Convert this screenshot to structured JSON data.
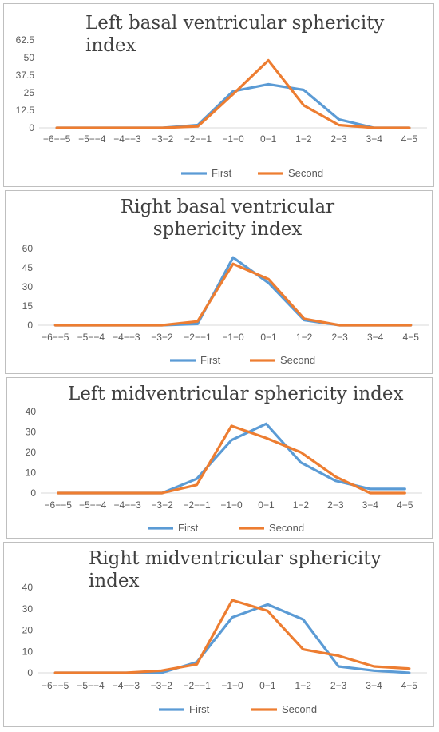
{
  "categories": [
    "−6−−5",
    "−5−−4",
    "−4−−3",
    "−3−2",
    "−2−−1",
    "−1−0",
    "0−1",
    "1−2",
    "2−3",
    "3−4",
    "4−5"
  ],
  "colors": {
    "first": "#5b9bd5",
    "second": "#ed7d31",
    "axis": "#d9d9d9",
    "text": "#595959"
  },
  "chart_data": [
    {
      "type": "line",
      "title": "Left basal ventricular sphericity index",
      "xlabel": "",
      "ylabel": "",
      "ylim": [
        0,
        62.5
      ],
      "yticks": [
        "0",
        "12.5",
        "25",
        "37.5",
        "50",
        "62.5"
      ],
      "legend": "bottom",
      "series": [
        {
          "name": "First",
          "values": [
            0,
            0,
            0,
            0,
            2,
            26,
            31,
            27,
            6,
            0,
            0
          ]
        },
        {
          "name": "Second",
          "values": [
            0,
            0,
            0,
            0,
            1,
            24,
            48,
            16,
            2,
            0,
            0
          ]
        }
      ]
    },
    {
      "type": "line",
      "title": "Right basal ventricular sphericity index",
      "xlabel": "",
      "ylabel": "",
      "ylim": [
        0,
        60
      ],
      "yticks": [
        "0",
        "15",
        "30",
        "45",
        "60"
      ],
      "legend": "bottom",
      "series": [
        {
          "name": "First",
          "values": [
            0,
            0,
            0,
            0,
            1,
            53,
            33,
            4,
            0,
            0,
            0
          ]
        },
        {
          "name": "Second",
          "values": [
            0,
            0,
            0,
            0,
            3,
            48,
            36,
            5,
            0,
            0,
            0
          ]
        }
      ]
    },
    {
      "type": "line",
      "title": "Left midventricular sphericity index",
      "xlabel": "",
      "ylabel": "",
      "ylim": [
        0,
        40
      ],
      "yticks": [
        "0",
        "10",
        "20",
        "30",
        "40"
      ],
      "legend": "bottom",
      "series": [
        {
          "name": "First",
          "values": [
            0,
            0,
            0,
            0,
            7,
            26,
            34,
            15,
            6,
            2,
            2
          ]
        },
        {
          "name": "Second",
          "values": [
            0,
            0,
            0,
            0,
            4,
            33,
            27,
            20,
            8,
            0,
            0
          ]
        }
      ]
    },
    {
      "type": "line",
      "title": "Right midventricular sphericity index",
      "xlabel": "",
      "ylabel": "",
      "ylim": [
        0,
        40
      ],
      "yticks": [
        "0",
        "10",
        "20",
        "30",
        "40"
      ],
      "legend": "bottom",
      "series": [
        {
          "name": "First",
          "values": [
            0,
            0,
            0,
            0,
            5,
            26,
            32,
            25,
            3,
            1,
            0
          ]
        },
        {
          "name": "Second",
          "values": [
            0,
            0,
            0,
            1,
            4,
            34,
            29,
            11,
            8,
            3,
            2
          ]
        }
      ]
    }
  ]
}
